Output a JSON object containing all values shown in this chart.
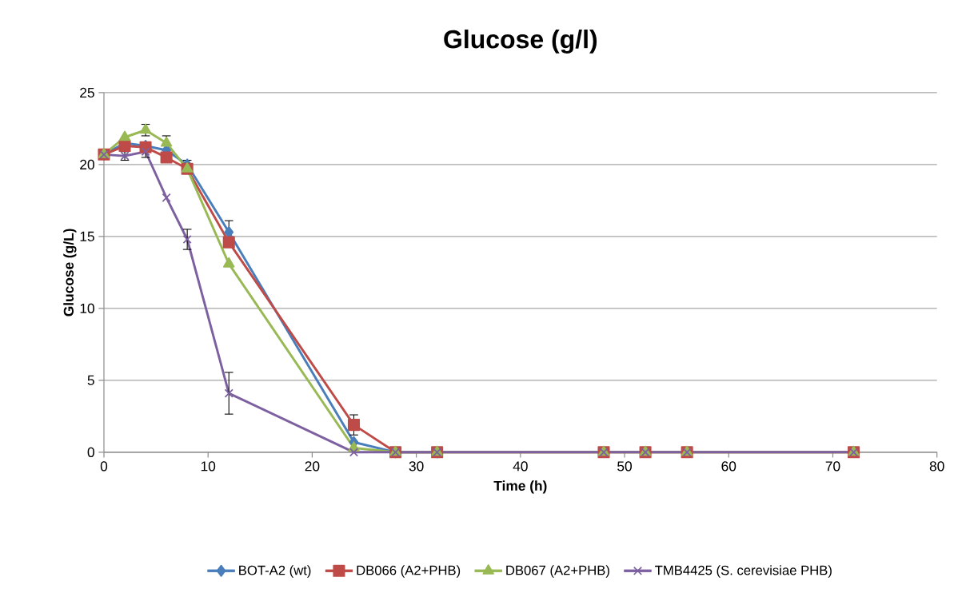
{
  "chart_data": {
    "type": "line",
    "title": "Glucose (g/l)",
    "xlabel": "Time (h)",
    "ylabel": "Glucose (g/L)",
    "x": [
      0,
      2,
      4,
      6,
      8,
      12,
      24,
      28,
      32,
      48,
      52,
      56,
      72
    ],
    "series": [
      {
        "name": "BOT-A2 (wt)",
        "color": "#4a7ebb",
        "marker": "diamond",
        "values": [
          20.7,
          21.5,
          21.3,
          21.0,
          20.0,
          15.3,
          0.7,
          0,
          0,
          null,
          null,
          null,
          null
        ],
        "errors": [
          null,
          null,
          null,
          null,
          0.3,
          0.8,
          null,
          null,
          null,
          null,
          null,
          null,
          null
        ]
      },
      {
        "name": "DB066 (A2+PHB)",
        "color": "#be4b48",
        "marker": "square",
        "values": [
          20.7,
          21.3,
          21.2,
          20.5,
          19.7,
          14.6,
          1.9,
          0,
          0,
          0,
          0,
          0,
          0
        ],
        "errors": [
          null,
          null,
          null,
          null,
          null,
          null,
          0.7,
          null,
          null,
          null,
          null,
          null,
          null
        ]
      },
      {
        "name": "DB067 (A2+PHB)",
        "color": "#98b954",
        "marker": "triangle",
        "values": [
          20.7,
          21.9,
          22.4,
          21.5,
          19.7,
          13.1,
          0.3,
          0,
          0,
          0,
          0,
          0,
          0
        ],
        "errors": [
          null,
          null,
          0.4,
          0.5,
          null,
          null,
          null,
          null,
          null,
          null,
          null,
          null,
          null
        ]
      },
      {
        "name": "TMB4425 (S. cerevisiae PHB)",
        "color": "#7d60a0",
        "marker": "cross",
        "values": [
          20.7,
          20.6,
          20.9,
          17.7,
          14.8,
          4.1,
          0,
          0,
          0,
          0,
          0,
          0,
          0
        ],
        "errors": [
          null,
          0.3,
          0.4,
          null,
          0.7,
          1.45,
          null,
          null,
          null,
          null,
          null,
          null,
          null
        ]
      }
    ],
    "xlim": [
      0,
      80
    ],
    "xticks": [
      0,
      10,
      20,
      30,
      40,
      50,
      60,
      70,
      80
    ],
    "ylim": [
      0,
      25
    ],
    "yticks": [
      0,
      5,
      10,
      15,
      20,
      25
    ],
    "grid": "y",
    "legend": "bottom",
    "line_style": "solid"
  }
}
